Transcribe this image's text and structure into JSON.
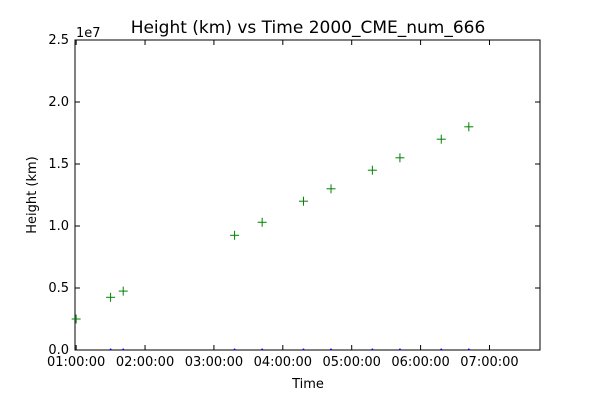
{
  "chart_data": {
    "type": "scatter",
    "title": "Height (km) vs Time 2000_CME_num_666",
    "xlabel": "Time",
    "ylabel": "Height (km)",
    "y_offset_label": "1e7",
    "x_axis": {
      "kind": "time",
      "min": "00:59:00",
      "max": "07:44:00",
      "ticks": [
        "01:00:00",
        "02:00:00",
        "03:00:00",
        "04:00:00",
        "05:00:00",
        "06:00:00",
        "07:00:00"
      ]
    },
    "y_axis": {
      "min": 0,
      "max": 25000000,
      "ticks": [
        0,
        5000000,
        10000000,
        15000000,
        20000000,
        25000000
      ],
      "tick_labels": [
        "0.0",
        "0.5",
        "1.0",
        "1.5",
        "2.0",
        "2.5"
      ]
    },
    "grid": false,
    "legend": "none",
    "series": [
      {
        "marker": "plus",
        "color": "#008000",
        "points": [
          {
            "x": "01:00:00",
            "y": 2500000
          },
          {
            "x": "01:30:00",
            "y": 4250000
          },
          {
            "x": "01:41:00",
            "y": 4750000
          },
          {
            "x": "03:18:00",
            "y": 9250000
          },
          {
            "x": "03:42:00",
            "y": 10300000
          },
          {
            "x": "04:18:00",
            "y": 12000000
          },
          {
            "x": "04:42:00",
            "y": 13000000
          },
          {
            "x": "05:18:00",
            "y": 14500000
          },
          {
            "x": "05:42:00",
            "y": 15500000
          },
          {
            "x": "06:18:00",
            "y": 17000000
          },
          {
            "x": "06:42:00",
            "y": 18000000
          }
        ]
      },
      {
        "marker": "point",
        "color": "#0000ff",
        "points": [
          {
            "x": "01:30:00",
            "y": 0
          },
          {
            "x": "01:41:00",
            "y": 0
          },
          {
            "x": "03:18:00",
            "y": 0
          },
          {
            "x": "03:42:00",
            "y": 0
          },
          {
            "x": "04:18:00",
            "y": 0
          },
          {
            "x": "04:42:00",
            "y": 0
          },
          {
            "x": "05:18:00",
            "y": 0
          },
          {
            "x": "05:42:00",
            "y": 0
          },
          {
            "x": "06:18:00",
            "y": 0
          },
          {
            "x": "06:42:00",
            "y": 0
          }
        ]
      }
    ]
  }
}
